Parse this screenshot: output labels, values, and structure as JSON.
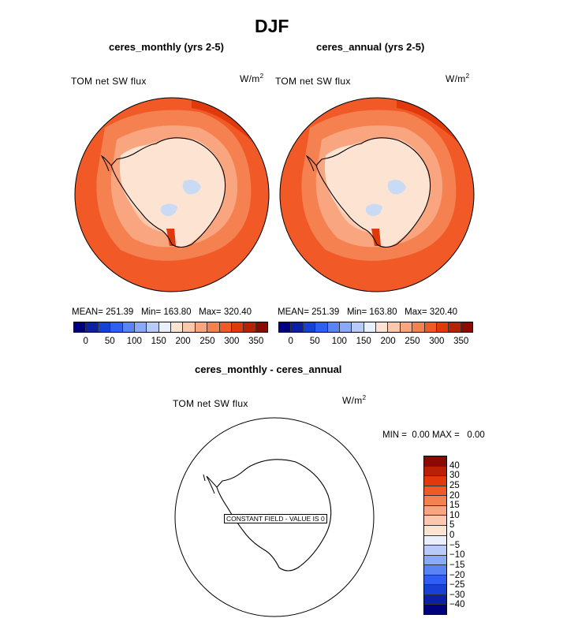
{
  "title": "DJF",
  "panels": [
    {
      "subtitle": "ceres_monthly (yrs 2-5)",
      "field": "TOM net SW flux",
      "units_base": "W/m",
      "units_exp": "2",
      "mean_label": "MEAN=",
      "mean": "251.39",
      "min_label": "Min=",
      "min": "163.80",
      "max_label": "Max=",
      "max": "320.40"
    },
    {
      "subtitle": "ceres_annual (yrs 2-5)",
      "field": "TOM net SW flux",
      "units_base": "W/m",
      "units_exp": "2",
      "mean_label": "MEAN=",
      "mean": "251.39",
      "min_label": "Min=",
      "min": "163.80",
      "max_label": "Max=",
      "max": "320.40"
    }
  ],
  "colorbar_ticks": [
    "0",
    "50",
    "100",
    "150",
    "200",
    "250",
    "300",
    "350"
  ],
  "colorbar_colors": [
    "#00007f",
    "#0d1fa8",
    "#1740d6",
    "#2e5ff0",
    "#5a84f5",
    "#8aa9f7",
    "#b8cbf8",
    "#e9f0fb",
    "#fde3d2",
    "#fcc8ad",
    "#f9a57f",
    "#f58050",
    "#f15a26",
    "#e03a0c",
    "#b82106",
    "#8a0a00"
  ],
  "diff": {
    "subtitle": "ceres_monthly - ceres_annual",
    "field": "TOM net SW flux",
    "units_base": "W/m",
    "units_exp": "2",
    "min_label": "MIN =",
    "min": "0.00",
    "max_label": "MAX =",
    "max": "0.00",
    "note": "CONSTANT FIELD - VALUE IS 0",
    "ticks": [
      "40",
      "30",
      "25",
      "20",
      "15",
      "10",
      "5",
      "0",
      "−5",
      "−10",
      "−15",
      "−20",
      "−25",
      "−30",
      "−40"
    ],
    "colors": [
      "#8a0a00",
      "#b82106",
      "#e03a0c",
      "#f15a26",
      "#f58050",
      "#f9a57f",
      "#fcc8ad",
      "#fde3d2",
      "#e9f0fb",
      "#b8cbf8",
      "#8aa9f7",
      "#5a84f5",
      "#2e5ff0",
      "#1740d6",
      "#0d1fa8",
      "#00007f"
    ]
  }
}
